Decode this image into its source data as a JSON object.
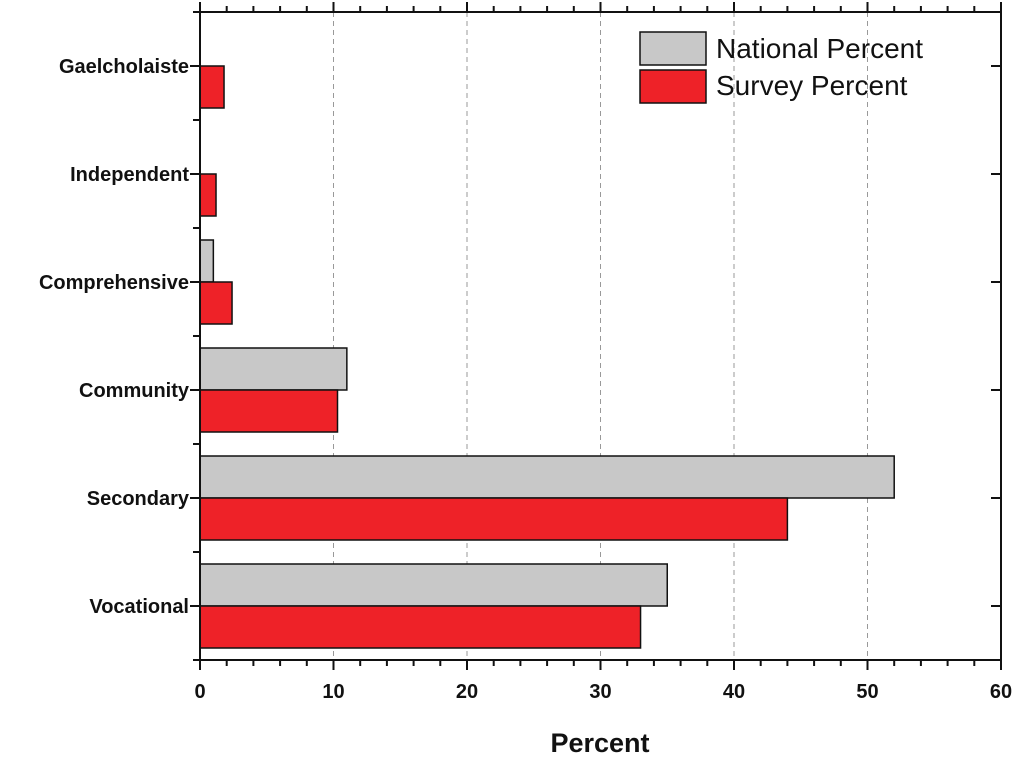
{
  "chart_data": {
    "type": "bar",
    "orientation": "horizontal",
    "categories": [
      "Vocational",
      "Secondary",
      "Community",
      "Comprehensive",
      "Independent",
      "Gaelcholaiste"
    ],
    "series": [
      {
        "name": "National Percent",
        "color": "#c8c8c8",
        "values": [
          35,
          52,
          11,
          1,
          0,
          0
        ]
      },
      {
        "name": "Survey Percent",
        "color": "#ee2228",
        "values": [
          33,
          44,
          10.3,
          2.4,
          1.2,
          1.8
        ]
      }
    ],
    "xlabel": "Percent",
    "ylabel": "",
    "xlim": [
      0,
      60
    ],
    "xticks": [
      "0",
      "10",
      "20",
      "30",
      "40",
      "50",
      "60"
    ],
    "grid": "vertical dashed",
    "legend_position": "top-right"
  }
}
